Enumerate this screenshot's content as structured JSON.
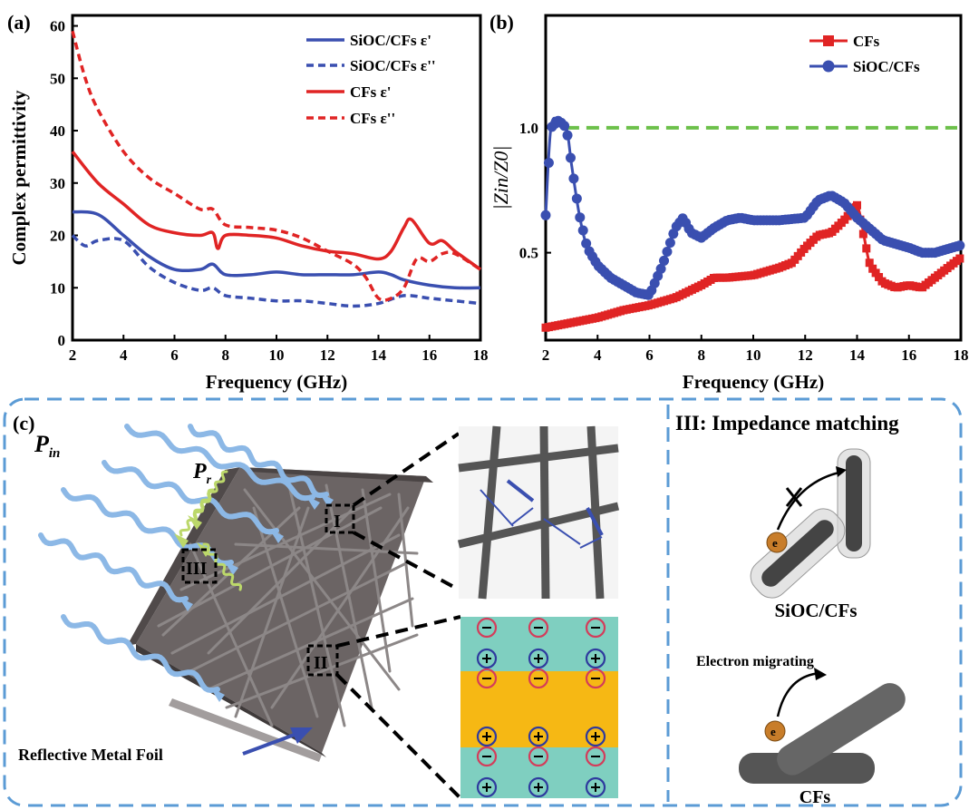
{
  "colors": {
    "blue": "#3a4fb0",
    "red": "#e02424",
    "green": "#6cc04a",
    "teal": "#7fcfc0",
    "yellow": "#f6b814",
    "frame": "#5b9bd5"
  },
  "panel_a": {
    "label": "(a)",
    "xlabel": "Frequency (GHz)",
    "ylabel": "Complex permittivity",
    "xticks": [
      "2",
      "4",
      "6",
      "8",
      "10",
      "12",
      "14",
      "16",
      "18"
    ],
    "yticks": [
      "0",
      "10",
      "20",
      "30",
      "40",
      "50",
      "60"
    ],
    "legend": [
      "SiOC/CFs ε'",
      "SiOC/CFs ε''",
      "CFs ε'",
      "CFs ε''"
    ]
  },
  "panel_b": {
    "label": "(b)",
    "xlabel": "Frequency (GHz)",
    "ylabel": "|Zin/Z0|",
    "xticks": [
      "2",
      "4",
      "6",
      "8",
      "10",
      "12",
      "14",
      "16",
      "18"
    ],
    "yticks": [
      "0.5",
      "1.0"
    ],
    "legend": [
      "CFs",
      "SiOC/CFs"
    ]
  },
  "panel_c": {
    "label": "(c)",
    "p_in": "P",
    "p_in_sub": "in",
    "p_r": "P",
    "p_r_sub": "r",
    "foil": "Reflective Metal Foil",
    "marker_i": "I",
    "marker_ii": "II",
    "marker_iii": "III",
    "impedance_title": "III: Impedance matching",
    "sioc_label": "SiOC/CFs",
    "migrating": "Electron migrating",
    "cfs_label": "CFs",
    "electron": "e"
  },
  "chart_data": [
    {
      "type": "line",
      "title": "",
      "xlabel": "Frequency (GHz)",
      "ylabel": "Complex permittivity",
      "xlim": [
        2,
        18
      ],
      "ylim": [
        0,
        62
      ],
      "grid": false,
      "legend_position": "top-right",
      "series": [
        {
          "name": "SiOC/CFs ε'",
          "style": "solid",
          "color": "#3a4fb0",
          "x": [
            2,
            3,
            4,
            5,
            6,
            7,
            7.5,
            8,
            9,
            10,
            11,
            12,
            13,
            14,
            14.5,
            15,
            16,
            17,
            18
          ],
          "y": [
            24.5,
            24,
            20,
            16,
            13.5,
            13.5,
            14.5,
            12.5,
            12.5,
            13,
            12.5,
            12.5,
            12.5,
            13,
            12.5,
            11.5,
            10.5,
            10,
            10
          ]
        },
        {
          "name": "SiOC/CFs ε''",
          "style": "dashed",
          "color": "#3a4fb0",
          "x": [
            2,
            2.5,
            3,
            4,
            5,
            6,
            7,
            7.5,
            8,
            9,
            10,
            11,
            12,
            13,
            14,
            15,
            16,
            17,
            18
          ],
          "y": [
            20,
            18,
            19,
            19,
            14,
            11,
            9.5,
            10,
            8.5,
            8,
            7.5,
            7.5,
            7,
            6.5,
            7,
            8.5,
            8,
            7.5,
            7
          ]
        },
        {
          "name": "CFs ε'",
          "style": "solid",
          "color": "#e02424",
          "x": [
            2,
            3,
            4,
            5,
            6,
            7,
            7.5,
            7.7,
            8,
            9,
            10,
            11,
            12,
            13,
            14,
            14.5,
            15,
            15.3,
            16,
            16.5,
            17,
            18
          ],
          "y": [
            36,
            30,
            26,
            22,
            20.5,
            20,
            20.5,
            17.5,
            20,
            20,
            19.5,
            18,
            17,
            16.5,
            15.5,
            17,
            21.5,
            23,
            18.5,
            19,
            17,
            13.5
          ]
        },
        {
          "name": "CFs ε''",
          "style": "dashed",
          "color": "#e02424",
          "x": [
            2,
            2.5,
            3,
            4,
            5,
            6,
            7,
            7.5,
            8,
            9,
            10,
            11,
            12,
            13,
            13.5,
            14,
            14.5,
            15,
            15.5,
            16,
            16.5,
            17,
            18
          ],
          "y": [
            59,
            50,
            44,
            36,
            31,
            28,
            25,
            25,
            22,
            21.5,
            21,
            19.5,
            17,
            14.5,
            12,
            8,
            8,
            10,
            15.5,
            15,
            16.5,
            16.5,
            13.5
          ]
        }
      ]
    },
    {
      "type": "line",
      "title": "",
      "xlabel": "Frequency (GHz)",
      "ylabel": "|Zin/Z0|",
      "xlim": [
        2,
        18
      ],
      "ylim": [
        0.15,
        1.45
      ],
      "grid": false,
      "legend_position": "top-right",
      "reference_line": {
        "y": 1.0,
        "style": "dashed",
        "color": "#6cc04a"
      },
      "series": [
        {
          "name": "CFs",
          "marker": "square",
          "color": "#e02424",
          "x": [
            2,
            3,
            4,
            5,
            6,
            7,
            8,
            8.5,
            9,
            10,
            11,
            11.5,
            12,
            12.5,
            13,
            13.5,
            14,
            14.5,
            15,
            15.5,
            16,
            16.5,
            17,
            18
          ],
          "y": [
            0.2,
            0.22,
            0.24,
            0.27,
            0.29,
            0.32,
            0.37,
            0.4,
            0.4,
            0.41,
            0.44,
            0.46,
            0.52,
            0.57,
            0.58,
            0.63,
            0.69,
            0.45,
            0.38,
            0.36,
            0.37,
            0.36,
            0.4,
            0.48
          ]
        },
        {
          "name": "SiOC/CFs",
          "marker": "circle",
          "color": "#3a4fb0",
          "x": [
            2,
            2.2,
            2.5,
            2.8,
            3,
            3.3,
            3.6,
            4,
            4.5,
            5,
            5.5,
            6,
            6.5,
            7,
            7.3,
            7.6,
            8,
            8.5,
            9,
            9.5,
            10,
            11,
            12,
            12.5,
            13,
            13.5,
            14,
            15,
            16,
            16.5,
            17,
            18
          ],
          "y": [
            0.65,
            1.0,
            1.03,
            1.0,
            0.85,
            0.65,
            0.52,
            0.45,
            0.4,
            0.37,
            0.34,
            0.33,
            0.45,
            0.6,
            0.64,
            0.58,
            0.56,
            0.6,
            0.63,
            0.64,
            0.63,
            0.63,
            0.64,
            0.71,
            0.73,
            0.7,
            0.64,
            0.55,
            0.52,
            0.5,
            0.5,
            0.53
          ]
        }
      ]
    }
  ]
}
